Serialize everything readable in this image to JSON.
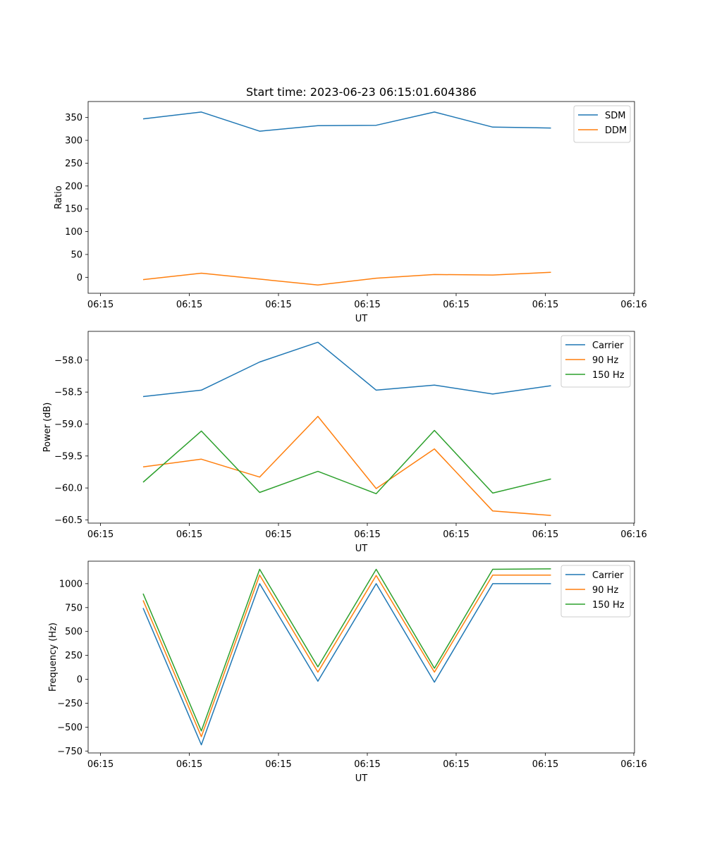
{
  "chart_data": [
    {
      "type": "line",
      "title": "Start time: 2023-06-23 06:15:01.604386",
      "xlabel": "UT",
      "ylabel": "Ratio",
      "x_ticks": [
        "06:15",
        "06:15",
        "06:15",
        "06:15",
        "06:15",
        "06:15",
        "06:16"
      ],
      "y_ticks": [
        0,
        50,
        100,
        150,
        200,
        250,
        300,
        350
      ],
      "ylim": [
        -35,
        385
      ],
      "legend_position": "top-right",
      "series": [
        {
          "name": "SDM",
          "color": "#1f77b4",
          "values": [
            347,
            362,
            320,
            332,
            333,
            362,
            329,
            327
          ]
        },
        {
          "name": "DDM",
          "color": "#ff7f0e",
          "values": [
            -5,
            9,
            -4,
            -17,
            -2,
            6,
            5,
            11
          ]
        }
      ]
    },
    {
      "type": "line",
      "title": "",
      "xlabel": "UT",
      "ylabel": "Power (dB)",
      "x_ticks": [
        "06:15",
        "06:15",
        "06:15",
        "06:15",
        "06:15",
        "06:15",
        "06:16"
      ],
      "y_ticks": [
        "-58.0",
        "-58.5",
        "-59.0",
        "-59.5",
        "-60.0",
        "-60.5"
      ],
      "ylim": [
        -60.55,
        -57.55
      ],
      "legend_position": "top-right",
      "series": [
        {
          "name": "Carrier",
          "color": "#1f77b4",
          "values": [
            -58.57,
            -58.47,
            -58.03,
            -57.72,
            -58.47,
            -58.39,
            -58.53,
            -58.4
          ]
        },
        {
          "name": "90 Hz",
          "color": "#ff7f0e",
          "values": [
            -59.67,
            -59.55,
            -59.83,
            -58.88,
            -60.01,
            -59.39,
            -60.36,
            -60.43
          ]
        },
        {
          "name": "150 Hz",
          "color": "#2ca02c",
          "values": [
            -59.91,
            -59.11,
            -60.07,
            -59.74,
            -60.09,
            -59.1,
            -60.08,
            -59.86
          ]
        }
      ]
    },
    {
      "type": "line",
      "title": "",
      "xlabel": "UT",
      "ylabel": "Frequency (Hz)",
      "x_ticks": [
        "06:15",
        "06:15",
        "06:15",
        "06:15",
        "06:15",
        "06:15",
        "06:16"
      ],
      "y_ticks": [
        -750,
        -500,
        -250,
        0,
        250,
        500,
        750,
        1000
      ],
      "ylim": [
        -770,
        1235
      ],
      "legend_position": "top-right",
      "series": [
        {
          "name": "Carrier",
          "color": "#1f77b4",
          "values": [
            745,
            -685,
            1000,
            -20,
            1000,
            -30,
            1000,
            1000
          ]
        },
        {
          "name": "90 Hz",
          "color": "#ff7f0e",
          "values": [
            825,
            -600,
            1090,
            75,
            1085,
            75,
            1090,
            1090
          ]
        },
        {
          "name": "150 Hz",
          "color": "#2ca02c",
          "values": [
            895,
            -540,
            1150,
            130,
            1150,
            115,
            1150,
            1155
          ]
        }
      ]
    }
  ]
}
